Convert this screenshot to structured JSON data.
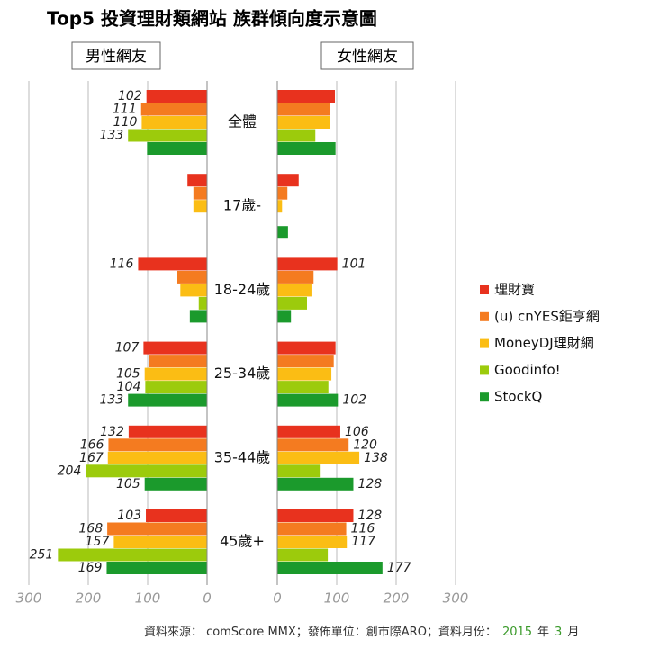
{
  "title": "Top5 投資理財類網站  族群傾向度示意圖",
  "source": {
    "text": "資料來源： comScore MMX；發佈單位：創市際ARO；資料月份：",
    "year": "2015",
    "year_unit": "年",
    "month": "3",
    "month_unit": "月"
  },
  "chart_data": [
    {
      "type": "bar",
      "orientation": "horizontal",
      "title": "男性網友",
      "categories": [
        "全體",
        "17歲-",
        "18-24歲",
        "25-34歲",
        "35-44歲",
        "45歲+"
      ],
      "xlim": [
        300,
        0
      ],
      "xticks": [
        300,
        200,
        100,
        0
      ],
      "grid": true,
      "legend": "right",
      "series": [
        {
          "name": "理財寶",
          "color": "#e8321e",
          "values": [
            102,
            33,
            116,
            107,
            132,
            103
          ],
          "value_labels": [
            "102",
            null,
            "116",
            "107",
            "132",
            "103"
          ]
        },
        {
          "name": "(u) cnYES鉅亨網",
          "color": "#f47b20",
          "values": [
            111,
            23,
            50,
            98,
            166,
            168
          ],
          "value_labels": [
            "111",
            null,
            null,
            null,
            "166",
            "168"
          ]
        },
        {
          "name": "MoneyDJ理財網",
          "color": "#fbbd14",
          "values": [
            110,
            23,
            45,
            105,
            167,
            157
          ],
          "value_labels": [
            "110",
            null,
            null,
            "105",
            "167",
            "157"
          ]
        },
        {
          "name": "Goodinfo!",
          "color": "#9ccb0c",
          "values": [
            133,
            null,
            14,
            104,
            204,
            251
          ],
          "value_labels": [
            "133",
            null,
            null,
            "104",
            "204",
            "251"
          ]
        },
        {
          "name": "StockQ",
          "color": "#1b9a2c",
          "values": [
            101,
            null,
            29,
            133,
            105,
            169
          ],
          "value_labels": [
            null,
            null,
            null,
            "133",
            "105",
            "169"
          ]
        }
      ]
    },
    {
      "type": "bar",
      "orientation": "horizontal",
      "title": "女性網友",
      "xlim": [
        0,
        300
      ],
      "xticks": [
        0,
        100,
        200,
        300
      ],
      "grid": true,
      "series": [
        {
          "values": [
            97,
            36,
            101,
            98,
            106,
            128
          ],
          "value_labels": [
            null,
            null,
            "101",
            null,
            "106",
            "128"
          ]
        },
        {
          "values": [
            88,
            17,
            61,
            95,
            120,
            116
          ],
          "value_labels": [
            null,
            null,
            null,
            null,
            "120",
            "116"
          ]
        },
        {
          "values": [
            89,
            8,
            59,
            91,
            138,
            117
          ],
          "value_labels": [
            null,
            null,
            null,
            null,
            "138",
            "117"
          ]
        },
        {
          "values": [
            64,
            null,
            50,
            86,
            73,
            85
          ],
          "value_labels": [
            null,
            null,
            null,
            null,
            null,
            null
          ]
        },
        {
          "values": [
            98,
            18,
            23,
            102,
            128,
            177
          ],
          "value_labels": [
            null,
            null,
            null,
            "102",
            "128",
            "177"
          ]
        }
      ]
    }
  ]
}
